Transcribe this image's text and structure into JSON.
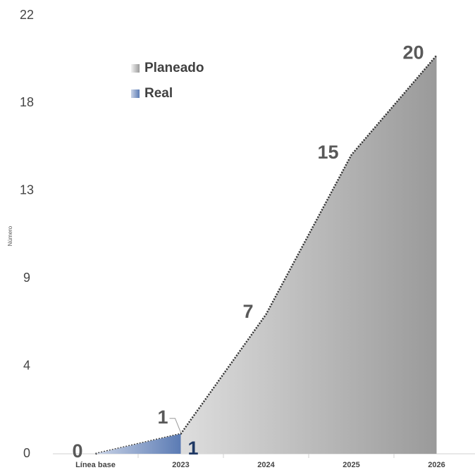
{
  "chart_data": {
    "type": "area",
    "y_label": "Número",
    "categories": [
      "Línea base",
      "2023",
      "2024",
      "2025",
      "2026"
    ],
    "series": [
      {
        "name": "Planeado",
        "color": "#9a9a9a",
        "values": [
          0,
          1,
          7,
          15,
          20
        ]
      },
      {
        "name": "Real",
        "color": "#5b7bb4",
        "values": [
          0,
          1,
          null,
          null,
          null
        ]
      }
    ],
    "ylim": [
      0,
      22
    ],
    "yticks": [
      0,
      {
        "value": 4.4,
        "label": "4"
      },
      {
        "value": 8.8,
        "label": "9"
      },
      {
        "value": 13.2,
        "label": "13"
      },
      {
        "value": 17.6,
        "label": "18"
      },
      22
    ],
    "grid": false,
    "legend": "top-left"
  }
}
